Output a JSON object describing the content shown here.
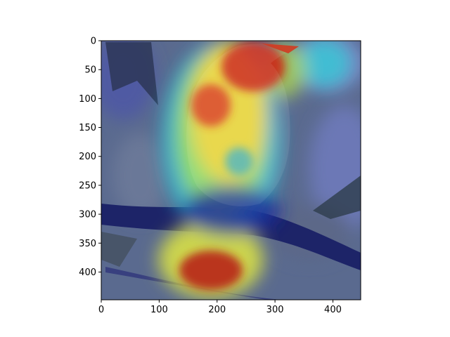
{
  "figure": {
    "image_semantic": "bird-on-branch-with-attention-heatmap-overlay",
    "colormap": "jet",
    "background_color": "#ffffff",
    "axis_color": "#000000"
  },
  "axes": {
    "x_range": [
      0,
      448
    ],
    "y_range": [
      0,
      448
    ],
    "y_inverted": true,
    "x_ticks": [
      {
        "value": 0,
        "label": "0"
      },
      {
        "value": 100,
        "label": "100"
      },
      {
        "value": 200,
        "label": "200"
      },
      {
        "value": 300,
        "label": "300"
      },
      {
        "value": 400,
        "label": "400"
      }
    ],
    "y_ticks": [
      {
        "value": 0,
        "label": "0"
      },
      {
        "value": 50,
        "label": "50"
      },
      {
        "value": 100,
        "label": "100"
      },
      {
        "value": 150,
        "label": "150"
      },
      {
        "value": 200,
        "label": "200"
      },
      {
        "value": 250,
        "label": "250"
      },
      {
        "value": 300,
        "label": "300"
      },
      {
        "value": 350,
        "label": "350"
      },
      {
        "value": 400,
        "label": "400"
      }
    ]
  }
}
